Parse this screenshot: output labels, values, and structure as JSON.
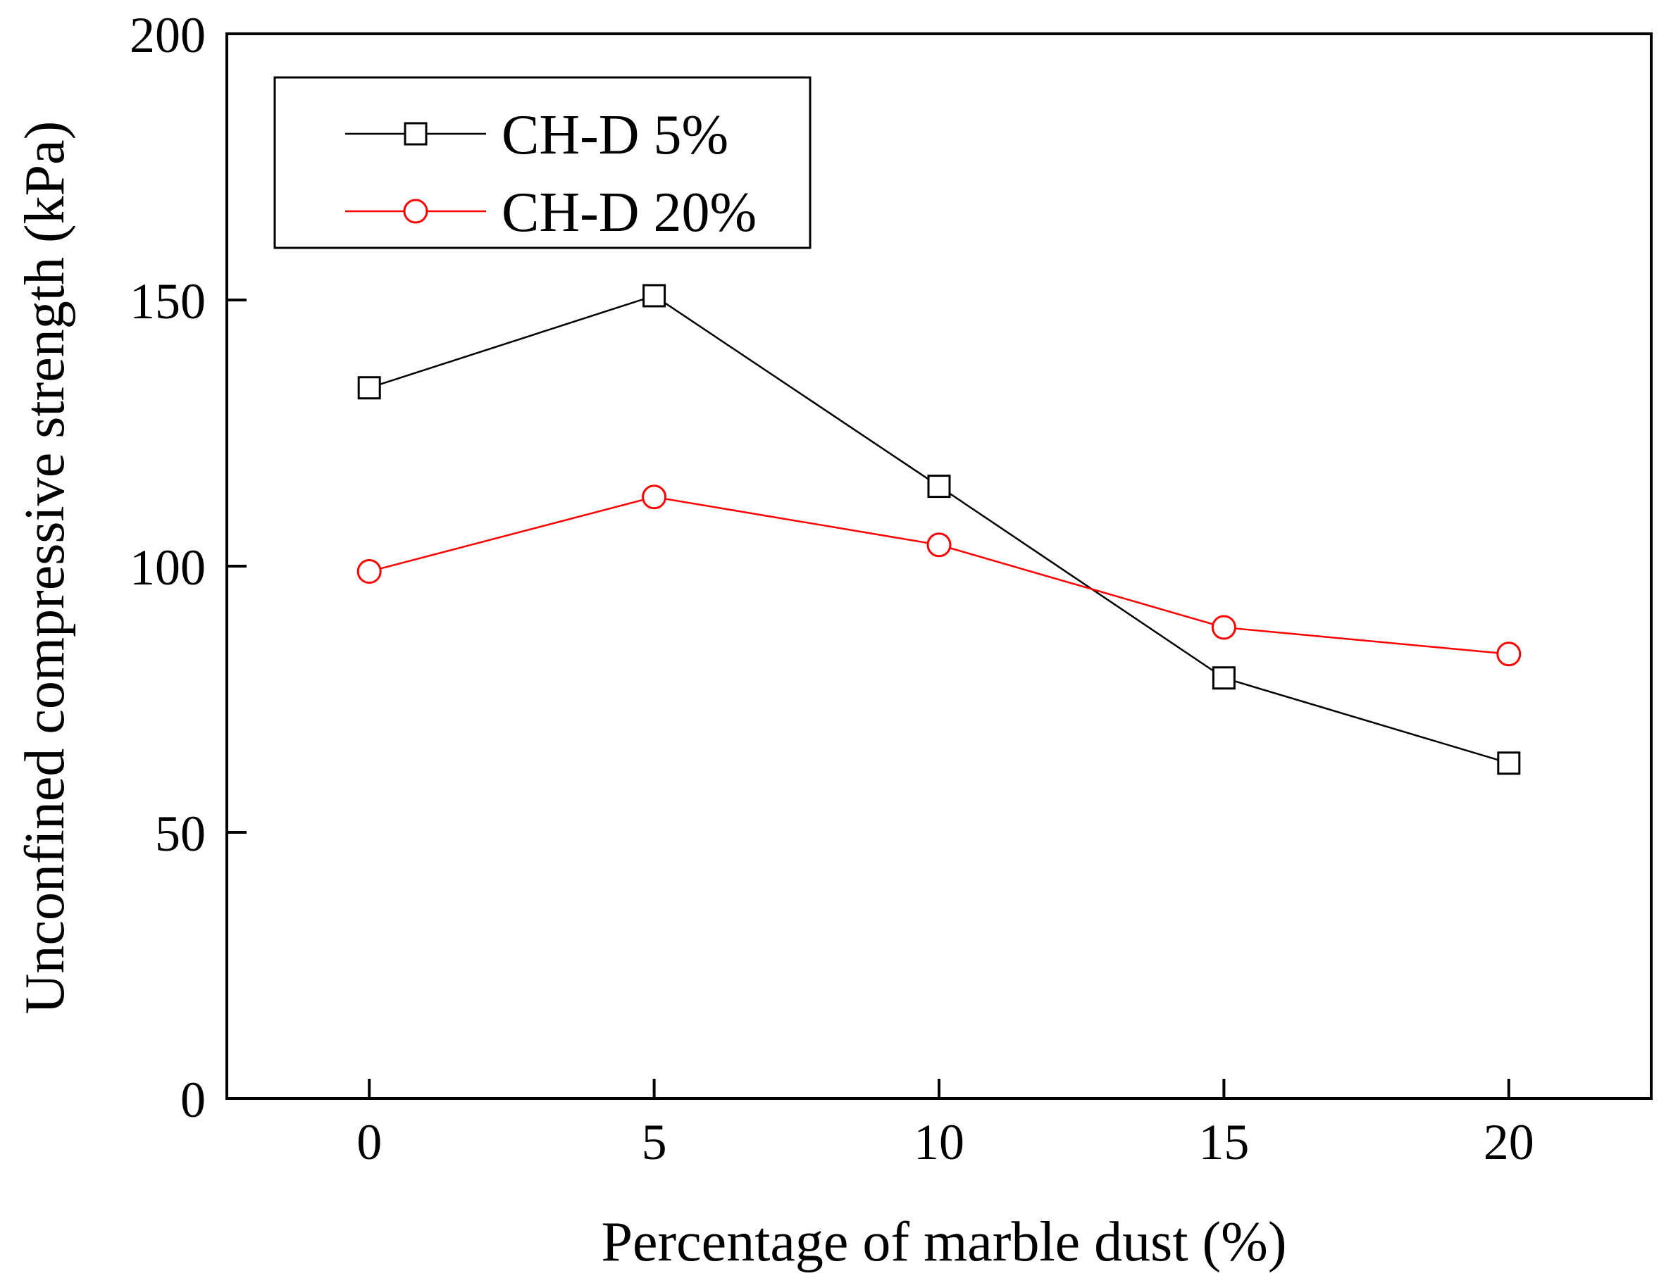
{
  "chart_data": {
    "type": "line",
    "title": "",
    "xlabel": "Percentage of marble dust (%)",
    "ylabel": "Unconfined compressive strength (kPa)",
    "x": [
      0,
      5,
      10,
      15,
      20
    ],
    "xlim": [
      -2.5,
      22.5
    ],
    "ylim": [
      0,
      200
    ],
    "xticks": [
      0,
      5,
      10,
      15,
      20
    ],
    "yticks": [
      0,
      50,
      100,
      150,
      200
    ],
    "xtick_labels": [
      "0",
      "5",
      "10",
      "15",
      "20"
    ],
    "ytick_labels": [
      "0",
      "50",
      "100",
      "150",
      "200"
    ],
    "grid": false,
    "legend_position": "top-left",
    "series": [
      {
        "name": "CH-D 5%",
        "values": [
          133.5,
          150.8,
          115,
          79,
          63
        ],
        "color": "#000000",
        "marker": "square"
      },
      {
        "name": "CH-D 20%",
        "values": [
          99,
          113,
          104,
          88.5,
          83.5
        ],
        "color": "#ff0000",
        "marker": "circle"
      }
    ]
  }
}
